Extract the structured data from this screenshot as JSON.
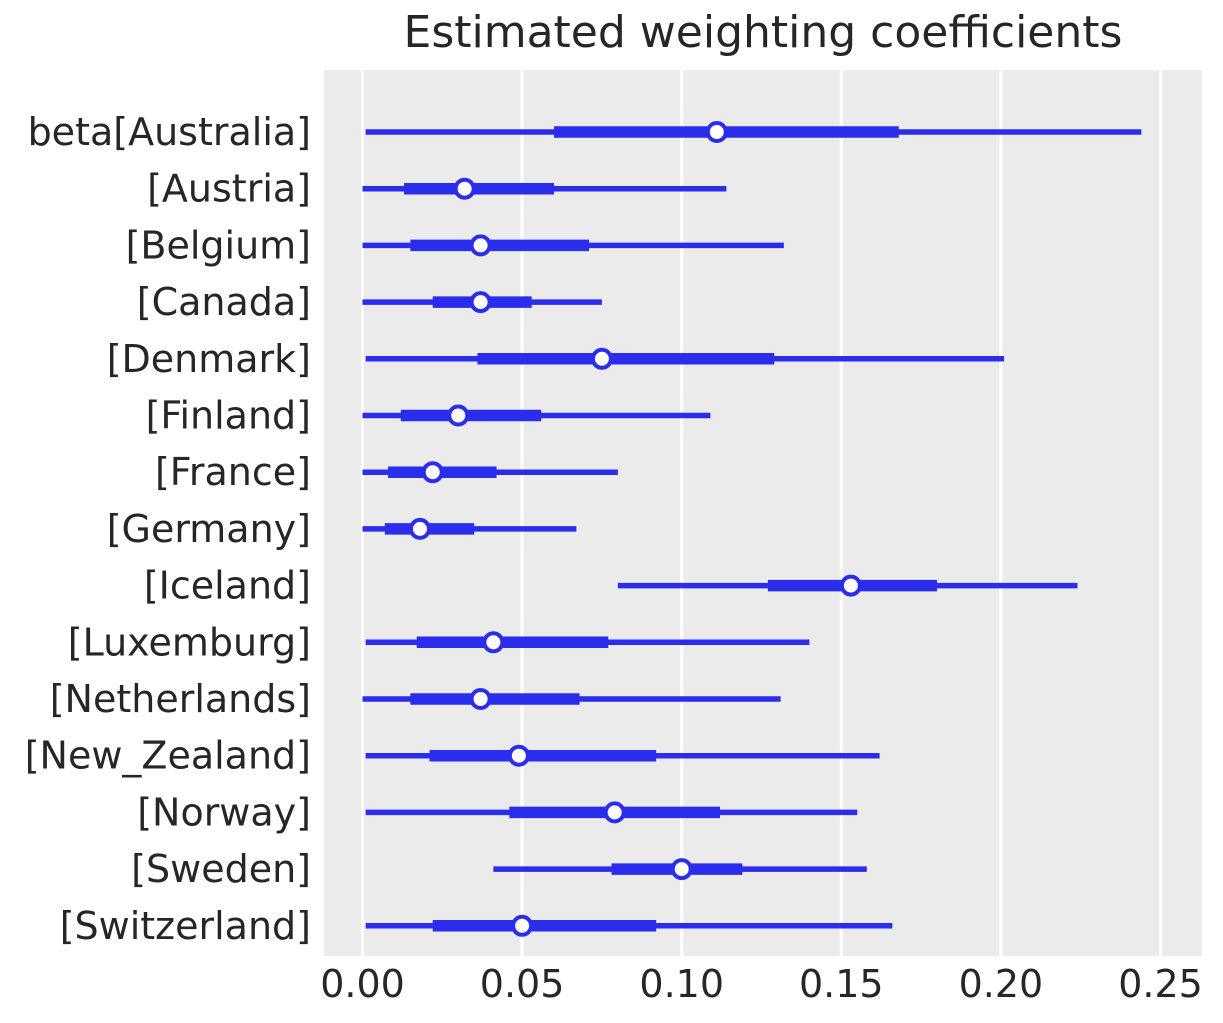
{
  "chart_data": {
    "type": "forest",
    "title": "Estimated weighting coefficients",
    "xlabel": "",
    "ylabel": "",
    "legend": "none",
    "grid": "vertical-only",
    "xlim": [
      -0.012,
      0.263
    ],
    "x_ticks": [
      "0.00",
      "0.05",
      "0.10",
      "0.15",
      "0.20",
      "0.25"
    ],
    "x_tick_values": [
      0.0,
      0.05,
      0.1,
      0.15,
      0.2,
      0.25
    ],
    "marker_style": "open-circle",
    "series": [
      {
        "label": "beta[Australia]",
        "interval_outer": [
          0.001,
          0.244
        ],
        "interval_inner": [
          0.06,
          0.168
        ],
        "median": 0.111
      },
      {
        "label": "[Austria]",
        "interval_outer": [
          0.0,
          0.114
        ],
        "interval_inner": [
          0.013,
          0.06
        ],
        "median": 0.032
      },
      {
        "label": "[Belgium]",
        "interval_outer": [
          0.0,
          0.132
        ],
        "interval_inner": [
          0.015,
          0.071
        ],
        "median": 0.037
      },
      {
        "label": "[Canada]",
        "interval_outer": [
          0.0,
          0.075
        ],
        "interval_inner": [
          0.022,
          0.053
        ],
        "median": 0.037
      },
      {
        "label": "[Denmark]",
        "interval_outer": [
          0.001,
          0.201
        ],
        "interval_inner": [
          0.036,
          0.129
        ],
        "median": 0.075
      },
      {
        "label": "[Finland]",
        "interval_outer": [
          0.0,
          0.109
        ],
        "interval_inner": [
          0.012,
          0.056
        ],
        "median": 0.03
      },
      {
        "label": "[France]",
        "interval_outer": [
          0.0,
          0.08
        ],
        "interval_inner": [
          0.008,
          0.042
        ],
        "median": 0.022
      },
      {
        "label": "[Germany]",
        "interval_outer": [
          0.0,
          0.067
        ],
        "interval_inner": [
          0.007,
          0.035
        ],
        "median": 0.018
      },
      {
        "label": "[Iceland]",
        "interval_outer": [
          0.08,
          0.224
        ],
        "interval_inner": [
          0.127,
          0.18
        ],
        "median": 0.153
      },
      {
        "label": "[Luxemburg]",
        "interval_outer": [
          0.001,
          0.14
        ],
        "interval_inner": [
          0.017,
          0.077
        ],
        "median": 0.041
      },
      {
        "label": "[Netherlands]",
        "interval_outer": [
          0.0,
          0.131
        ],
        "interval_inner": [
          0.015,
          0.068
        ],
        "median": 0.037
      },
      {
        "label": "[New_Zealand]",
        "interval_outer": [
          0.001,
          0.162
        ],
        "interval_inner": [
          0.021,
          0.092
        ],
        "median": 0.049
      },
      {
        "label": "[Norway]",
        "interval_outer": [
          0.001,
          0.155
        ],
        "interval_inner": [
          0.046,
          0.112
        ],
        "median": 0.079
      },
      {
        "label": "[Sweden]",
        "interval_outer": [
          0.041,
          0.158
        ],
        "interval_inner": [
          0.078,
          0.119
        ],
        "median": 0.1
      },
      {
        "label": "[Switzerland]",
        "interval_outer": [
          0.001,
          0.166
        ],
        "interval_inner": [
          0.022,
          0.092
        ],
        "median": 0.05
      }
    ],
    "colors": {
      "line": "#2a2eec",
      "marker_face": "#ffffff",
      "plot_background": "#ebebeb",
      "grid": "#ffffff",
      "text": "#262626",
      "figure_background": "#ffffff"
    }
  }
}
